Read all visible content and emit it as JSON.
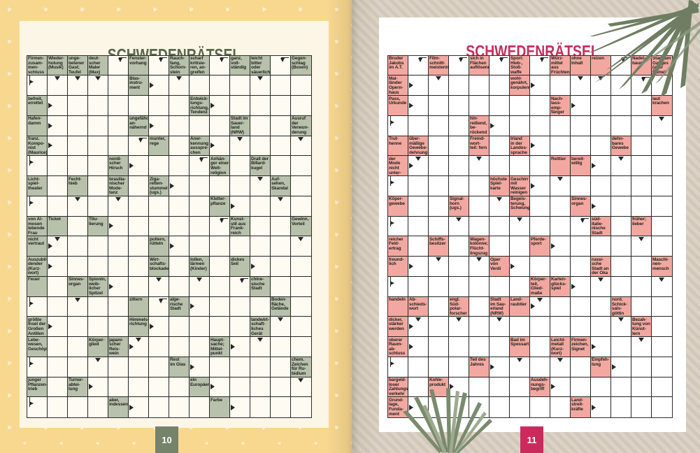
{
  "left_page": {
    "title": "SCHWEDENRÄTSEL",
    "page_number": "10",
    "colors": {
      "border": "#F8D88F",
      "panel": "#FCF6E6",
      "title": "#59674D",
      "clue_bg": "#B8C1AB",
      "badge_bg": "#75836B",
      "badge_text": "#FFFFFF"
    },
    "decor": {
      "border_pattern_icon": "heart-icon"
    },
    "grid": {
      "rows": 18,
      "cols": 14,
      "clues": [
        [
          1,
          1,
          "Firmen-\nzusam-\nmen-\nschluss"
        ],
        [
          1,
          2,
          "Wieder-\nholung\n(Musik)"
        ],
        [
          1,
          3,
          "unge-\nbetener\nGast;\nTeufel"
        ],
        [
          1,
          4,
          "deut-\nscher\nMaler\n(Max)"
        ],
        [
          1,
          6,
          "Fenster-\nvorhang"
        ],
        [
          1,
          8,
          "Rauch-\nfang,\nSchorn-\nstein"
        ],
        [
          1,
          9,
          "scharf\nkritisie-\nren, an-\ngreifen"
        ],
        [
          1,
          11,
          "ganz,\nvoll-\nständig"
        ],
        [
          1,
          12,
          "leicht\nbitter\noder\nsäuerlich"
        ],
        [
          1,
          14,
          "Gegen-\nschlag\n(Boxen)"
        ],
        [
          2,
          6,
          "Blas-\ninstru-\nment"
        ],
        [
          3,
          1,
          "befreit,\nerrettet"
        ],
        [
          3,
          9,
          "Entwick-\nlungs-\nrichtung,\nTendenz"
        ],
        [
          4,
          1,
          "Hafen-\ndamm"
        ],
        [
          4,
          6,
          "ungefähr,\nan-\nnähernd"
        ],
        [
          4,
          11,
          "Stadt im\nSauer-\nland\n(NRW)"
        ],
        [
          4,
          14,
          "Ausruf\nder\nVerwun-\nderung"
        ],
        [
          5,
          1,
          "franz.\nKompo-\nnist\n(Maurice)"
        ],
        [
          5,
          7,
          "munter,\nrege"
        ],
        [
          5,
          9,
          "Aner-\nkennung\nausspre-\nchen"
        ],
        [
          6,
          5,
          "nordi-\nscher\nHirsch"
        ],
        [
          6,
          10,
          "Anhän-\nger einer\nWelt-\nreligion"
        ],
        [
          6,
          12,
          "Drall der\nBillard-\nkugel"
        ],
        [
          7,
          1,
          "Licht-\nspiel-\ntheater"
        ],
        [
          7,
          3,
          "Fecht-\nhieb"
        ],
        [
          7,
          5,
          "brasilia-\nnischer\nMode-\ntanz"
        ],
        [
          7,
          7,
          "Ziga-\nretten-\nstummel\n(ugs.)"
        ],
        [
          7,
          13,
          "Auf-\nsehen,\nSkandal"
        ],
        [
          8,
          10,
          "Kletter-\npflanze"
        ],
        [
          9,
          1,
          "von Al-\nmosen\nlebende\nFrau"
        ],
        [
          9,
          2,
          "Ticket"
        ],
        [
          9,
          4,
          "Titu-\nlierung"
        ],
        [
          9,
          11,
          "Kunst-\nstil aus\nFrank-\nreich"
        ],
        [
          9,
          14,
          "Gewinn,\nVorteil"
        ],
        [
          10,
          1,
          "nicht\nvertraut"
        ],
        [
          10,
          7,
          "poltern,\nrütteln"
        ],
        [
          11,
          1,
          "Auszubil-\ndender\n(Kurz-\nwort)"
        ],
        [
          11,
          7,
          "Wirt-\nschafts-\nblockade"
        ],
        [
          11,
          9,
          "tollen,\nlärmen\n(Kinder)"
        ],
        [
          11,
          11,
          "dickes\nSeil"
        ],
        [
          12,
          1,
          "Feuer"
        ],
        [
          12,
          3,
          "Sinnes-\norgan"
        ],
        [
          12,
          4,
          "Spionin,\nweib-\nlicher\nSpitzel"
        ],
        [
          12,
          12,
          "chine-\nsische\nStadt"
        ],
        [
          13,
          6,
          "zittern"
        ],
        [
          13,
          8,
          "alge-\nrische\nStadt"
        ],
        [
          13,
          13,
          "Boden-\nfläche,\nGelände"
        ],
        [
          14,
          1,
          "größte\nInsel der\nGroßen\nAntillen"
        ],
        [
          14,
          6,
          "Himmels-\nrichtung"
        ],
        [
          14,
          12,
          "landwirt-\nschaft-\nliches\nGerät"
        ],
        [
          15,
          1,
          "Lebe-\nwesen,\nGeschöpf"
        ],
        [
          15,
          4,
          "Körper-\nglied"
        ],
        [
          15,
          5,
          "japani-\nscher\nReis-\nwein"
        ],
        [
          15,
          10,
          "Haupt-\nsache;\nMittel-\npunkt"
        ],
        [
          16,
          8,
          "Rest\nim Glas"
        ],
        [
          16,
          14,
          "chem.\nZeichen\nfür Ru-\nbidium"
        ],
        [
          17,
          1,
          "junger\nPflanzen-\ntrieb"
        ],
        [
          17,
          3,
          "Turner-\nabtei-\nlung"
        ],
        [
          17,
          9,
          "ein\nEuropäer"
        ],
        [
          18,
          5,
          "aber,\nindessen"
        ],
        [
          18,
          10,
          "Farbe"
        ]
      ],
      "arrows": [
        [
          1,
          5,
          "bd"
        ],
        [
          1,
          7,
          "bd"
        ],
        [
          1,
          10,
          "bd"
        ],
        [
          1,
          13,
          "bd"
        ],
        [
          2,
          1,
          "br"
        ],
        [
          2,
          2,
          "d"
        ],
        [
          2,
          3,
          "d"
        ],
        [
          2,
          4,
          "d"
        ],
        [
          2,
          7,
          "r"
        ],
        [
          2,
          8,
          "d"
        ],
        [
          2,
          12,
          "d"
        ],
        [
          3,
          2,
          "r"
        ],
        [
          3,
          10,
          "r"
        ],
        [
          4,
          2,
          "r"
        ],
        [
          4,
          7,
          "r"
        ],
        [
          5,
          2,
          "r"
        ],
        [
          5,
          6,
          "bd"
        ],
        [
          5,
          10,
          "r"
        ],
        [
          5,
          11,
          "d"
        ],
        [
          5,
          14,
          "d"
        ],
        [
          6,
          1,
          "br"
        ],
        [
          6,
          6,
          "r"
        ],
        [
          6,
          9,
          "bd"
        ],
        [
          7,
          8,
          "r"
        ],
        [
          7,
          12,
          "d"
        ],
        [
          8,
          1,
          "br"
        ],
        [
          8,
          3,
          "d"
        ],
        [
          8,
          5,
          "d"
        ],
        [
          8,
          11,
          "r"
        ],
        [
          8,
          13,
          "d"
        ],
        [
          9,
          5,
          "r"
        ],
        [
          9,
          10,
          "bd"
        ],
        [
          10,
          2,
          "d"
        ],
        [
          10,
          2,
          "r"
        ],
        [
          10,
          8,
          "r"
        ],
        [
          10,
          14,
          "d"
        ],
        [
          11,
          2,
          "r"
        ],
        [
          11,
          12,
          "r"
        ],
        [
          12,
          5,
          "r"
        ],
        [
          12,
          7,
          "d"
        ],
        [
          12,
          9,
          "d"
        ],
        [
          12,
          11,
          "bd"
        ],
        [
          13,
          1,
          "br"
        ],
        [
          13,
          3,
          "d"
        ],
        [
          13,
          7,
          "bd"
        ],
        [
          13,
          9,
          "r"
        ],
        [
          14,
          2,
          "r"
        ],
        [
          14,
          7,
          "r"
        ],
        [
          14,
          13,
          "d"
        ],
        [
          15,
          6,
          "d"
        ],
        [
          15,
          6,
          "r"
        ],
        [
          15,
          11,
          "r"
        ],
        [
          15,
          12,
          "d"
        ],
        [
          16,
          1,
          "br"
        ],
        [
          16,
          4,
          "d"
        ],
        [
          16,
          9,
          "r"
        ],
        [
          17,
          4,
          "r"
        ],
        [
          17,
          10,
          "r"
        ],
        [
          17,
          14,
          "d"
        ],
        [
          18,
          1,
          "br"
        ],
        [
          18,
          6,
          "r"
        ],
        [
          18,
          11,
          "r"
        ]
      ]
    }
  },
  "right_page": {
    "title": "SCHWEDENRÄTSEL",
    "page_number": "11",
    "colors": {
      "border_base": "#DCD3C7",
      "border_stripe": "#D2C8BA",
      "panel": "#FFFFFF",
      "title": "#C62E5E",
      "clue_bg": "#F2A8A0",
      "badge_bg": "#CB2A5C",
      "badge_text": "#FFFFFF",
      "plant": "#6F7E62"
    },
    "decor": {
      "top_right_icon": "palm-frond-icon",
      "bottom_icon": "grass-plant-icon"
    },
    "grid": {
      "rows": 18,
      "cols": 14,
      "clues": [
        [
          1,
          1,
          "Bruder\nJakobs\nim A.T."
        ],
        [
          1,
          3,
          "Film-\nschnitt-\nmeisterin"
        ],
        [
          1,
          5,
          "sich in\nFlächen\nauflösend"
        ],
        [
          1,
          7,
          "Sport:\nHieb-,\nStoß-\nwaffe"
        ],
        [
          1,
          9,
          "Würz-\nmittel\naus\nFrüchten"
        ],
        [
          1,
          10,
          "ohne\nInhalt"
        ],
        [
          1,
          11,
          "reizen"
        ],
        [
          1,
          13,
          "Nadel-\nbaum"
        ],
        [
          1,
          14,
          "Stadt am\nGanges\n(alter\nName)"
        ],
        [
          2,
          1,
          "Mai-\nländer\nOpern-\nhaus"
        ],
        [
          2,
          7,
          "wohl-\ngenährt,\nkorpulent"
        ],
        [
          3,
          1,
          "Pass,\nUrkunde"
        ],
        [
          3,
          9,
          "Nach-\nlass-\nemp-\nfänger"
        ],
        [
          3,
          14,
          "laut\nkrachen"
        ],
        [
          4,
          5,
          "hin-\nreißend,\nbe-\nrückend"
        ],
        [
          5,
          1,
          "Trut-\nhenne"
        ],
        [
          5,
          2,
          "über-\nmäßige\nGewebe-\ndehnung"
        ],
        [
          5,
          5,
          "Fremd-\nwort-\nteil: fern"
        ],
        [
          5,
          7,
          "Irland\nin der\nLandes-\nsprache"
        ],
        [
          5,
          12,
          "dehn-\nbares\nGewebe"
        ],
        [
          6,
          1,
          "der Mode\nnicht\nunter-\nworfen"
        ],
        [
          6,
          9,
          "Reittier"
        ],
        [
          6,
          10,
          "bereit-\nwillig"
        ],
        [
          7,
          6,
          "höchste\nSpiel-\nkarte"
        ],
        [
          7,
          7,
          "Geschirr\nmit\nWasser\nreinigen"
        ],
        [
          8,
          1,
          "Köper-\ngewebe"
        ],
        [
          8,
          4,
          "Signal-\nhorn\n(ugs.)"
        ],
        [
          8,
          7,
          "Begeis-\nterung,\nSchwung"
        ],
        [
          8,
          10,
          "Sinnes-\norgan"
        ],
        [
          9,
          11,
          "süd-\nitalie-\nnische\nStadt"
        ],
        [
          9,
          13,
          "früher;\nlieber"
        ],
        [
          10,
          1,
          "reicher\nFeld-\nertrag"
        ],
        [
          10,
          3,
          "Schiffs-\nbesitzer"
        ],
        [
          10,
          5,
          "Wagen-\nkolonne;\nFlücht-\nlingszug"
        ],
        [
          10,
          8,
          "Pferde-\nsport"
        ],
        [
          11,
          1,
          "freund-\nlich"
        ],
        [
          11,
          6,
          "Oper\nvon\nVerdi"
        ],
        [
          11,
          11,
          "russi-\nsche\nStadt an\nder Oka"
        ],
        [
          11,
          14,
          "Maschi-\nnen-\nmensch"
        ],
        [
          12,
          8,
          "Körper-\nteil,\nGlied-\nmaße"
        ],
        [
          12,
          9,
          "Karten-\nglücks-\nspiel"
        ],
        [
          13,
          1,
          "handeln"
        ],
        [
          13,
          2,
          "Ab-\nschieds-\nwort"
        ],
        [
          13,
          4,
          "engl.\nSüd-\npolar-\nforscher"
        ],
        [
          13,
          6,
          "Stadt\nim Sau-\nerland\n(NRW)"
        ],
        [
          13,
          7,
          "Land-\nraubtier"
        ],
        [
          13,
          12,
          "nord.\nSchick-\nsals-\ngöttin"
        ],
        [
          14,
          1,
          "dicker,\nstärker\nwerden"
        ],
        [
          14,
          13,
          "Bezah-\nlung von\nKünst-\nlern"
        ],
        [
          15,
          1,
          "oberer\nRaum-\nab-\nschluss"
        ],
        [
          15,
          7,
          "Bad im\nSpessart"
        ],
        [
          15,
          9,
          "Leicht-\nmetall\n(Kurz-\nwort)"
        ],
        [
          15,
          10,
          "Firmen-\nzeichen,\nSignet"
        ],
        [
          16,
          5,
          "Teil des\nJahres"
        ],
        [
          16,
          11,
          "Empfeh-\nlung"
        ],
        [
          17,
          1,
          "bargeld-\nloser\nZahlungs-\nverkehr"
        ],
        [
          17,
          3,
          "Kohle-\nprodukt"
        ],
        [
          17,
          8,
          "Ausdeh-\nnungs-\nbegriff"
        ],
        [
          18,
          1,
          "Grund-\nlage,\nFunda-\nment"
        ],
        [
          18,
          10,
          "Land-\nstreit-\nkräfte"
        ]
      ],
      "arrows": [
        [
          1,
          2,
          "bd"
        ],
        [
          1,
          4,
          "bd"
        ],
        [
          1,
          6,
          "bd"
        ],
        [
          1,
          8,
          "bd"
        ],
        [
          1,
          12,
          "bd"
        ],
        [
          2,
          2,
          "r"
        ],
        [
          2,
          3,
          "d"
        ],
        [
          2,
          8,
          "r"
        ],
        [
          2,
          10,
          "d"
        ],
        [
          2,
          11,
          "d"
        ],
        [
          2,
          13,
          "bd"
        ],
        [
          3,
          2,
          "r"
        ],
        [
          3,
          10,
          "r"
        ],
        [
          4,
          1,
          "br"
        ],
        [
          4,
          6,
          "r"
        ],
        [
          4,
          14,
          "d"
        ],
        [
          5,
          8,
          "r"
        ],
        [
          6,
          2,
          "d"
        ],
        [
          6,
          2,
          "r"
        ],
        [
          6,
          5,
          "d"
        ],
        [
          6,
          11,
          "r"
        ],
        [
          6,
          12,
          "d"
        ],
        [
          7,
          1,
          "br"
        ],
        [
          7,
          8,
          "r"
        ],
        [
          7,
          9,
          "d"
        ],
        [
          8,
          6,
          "d"
        ],
        [
          8,
          11,
          "r"
        ],
        [
          9,
          1,
          "br"
        ],
        [
          9,
          4,
          "d"
        ],
        [
          9,
          7,
          "d"
        ],
        [
          9,
          10,
          "bd"
        ],
        [
          10,
          9,
          "r"
        ],
        [
          10,
          13,
          "d"
        ],
        [
          11,
          2,
          "r"
        ],
        [
          11,
          3,
          "d"
        ],
        [
          11,
          5,
          "d"
        ],
        [
          11,
          7,
          "r"
        ],
        [
          12,
          1,
          "br"
        ],
        [
          12,
          10,
          "r"
        ],
        [
          12,
          11,
          "d"
        ],
        [
          12,
          14,
          "d"
        ],
        [
          13,
          8,
          "d"
        ],
        [
          13,
          8,
          "r"
        ],
        [
          14,
          2,
          "d"
        ],
        [
          14,
          2,
          "r"
        ],
        [
          14,
          4,
          "d"
        ],
        [
          14,
          6,
          "d"
        ],
        [
          14,
          12,
          "d"
        ],
        [
          15,
          2,
          "r"
        ],
        [
          15,
          11,
          "r"
        ],
        [
          15,
          13,
          "d"
        ],
        [
          16,
          1,
          "br"
        ],
        [
          16,
          6,
          "r"
        ],
        [
          16,
          7,
          "d"
        ],
        [
          16,
          9,
          "d"
        ],
        [
          16,
          12,
          "r"
        ],
        [
          17,
          4,
          "r"
        ],
        [
          17,
          9,
          "r"
        ],
        [
          18,
          2,
          "r"
        ],
        [
          18,
          11,
          "r"
        ]
      ]
    }
  }
}
